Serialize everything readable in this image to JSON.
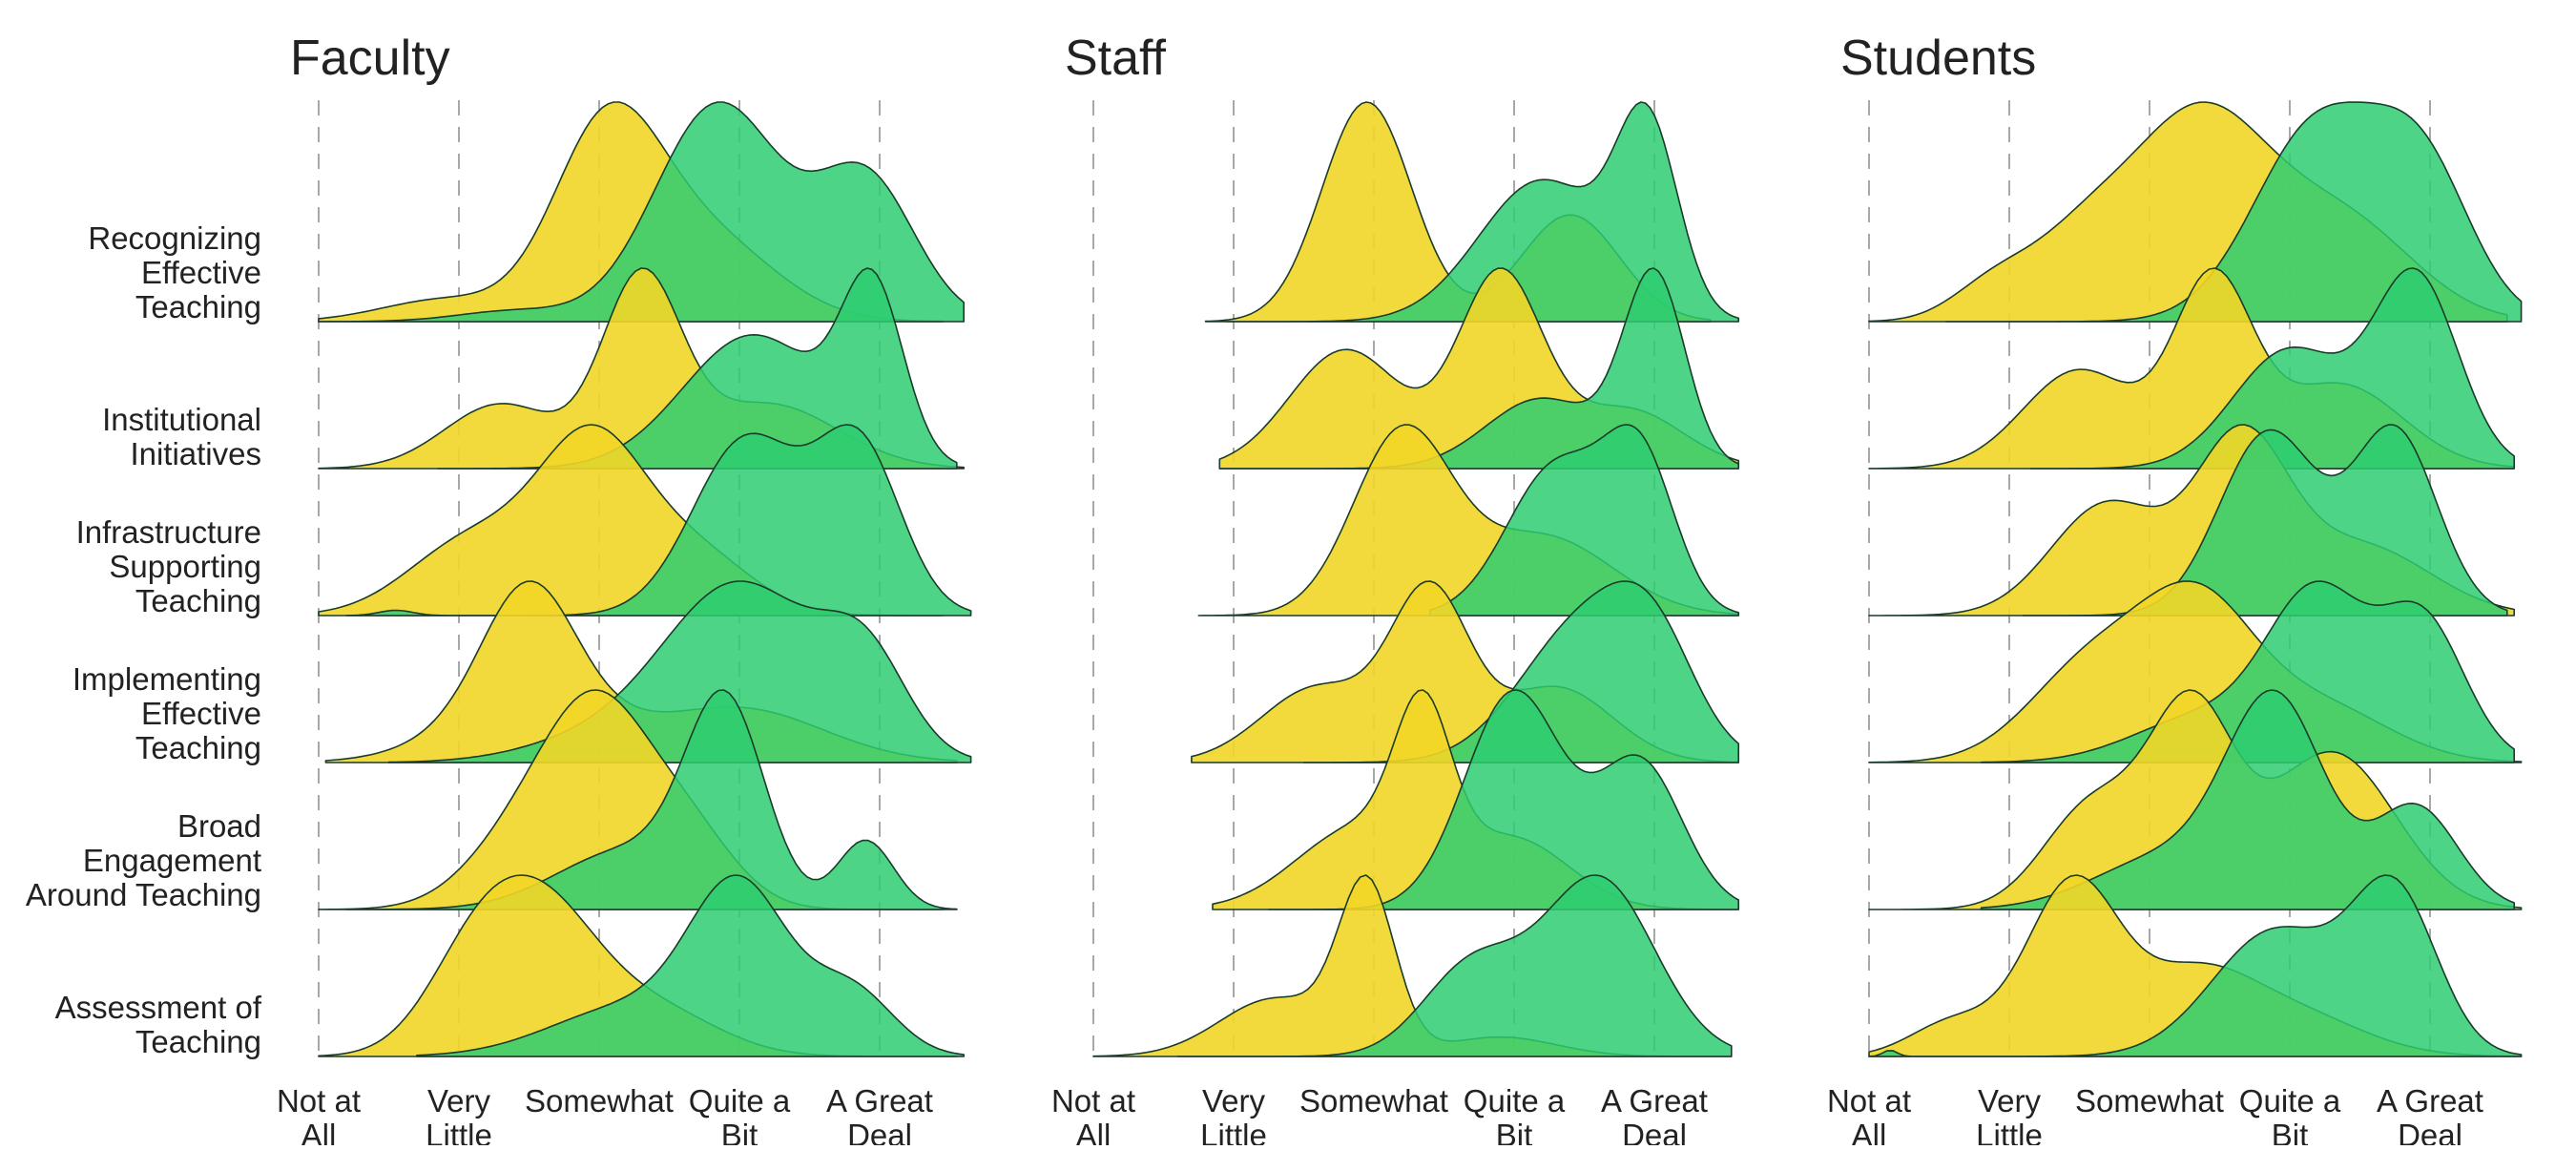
{
  "chart_data": {
    "type": "ridgeline",
    "x_scale": [
      "Not at All",
      "Very Little",
      "Somewhat",
      "Quite a Bit",
      "A Great Deal"
    ],
    "tick_labels": [
      [
        "Not at",
        "All"
      ],
      [
        "Very",
        "Little"
      ],
      [
        "Somewhat"
      ],
      [
        "Quite a",
        "Bit"
      ],
      [
        "A Great",
        "Deal"
      ]
    ],
    "categories": [
      [
        "Recognizing",
        "Effective",
        "Teaching"
      ],
      [
        "Institutional",
        "Initiatives"
      ],
      [
        "Infrastructure",
        "Supporting",
        "Teaching"
      ],
      [
        "Implementing",
        "Effective",
        "Teaching"
      ],
      [
        "Broad",
        "Engagement",
        "Around Teaching"
      ],
      [
        "Assessment of",
        "Teaching"
      ]
    ],
    "colors": {
      "current": "#f2d627",
      "ideal": "#2ecc71",
      "outline": "#1b3b2a",
      "grid": "#a8a8a8"
    },
    "panels": [
      {
        "title": "Faculty",
        "ridges": [
          {
            "yellow": {
              "range": [
                0.0,
                4.45
              ],
              "components": [
                [
                  0.9,
                  0.45,
                  0.12
                ],
                [
                  2.05,
                  0.38,
                  1.0
                ],
                [
                  2.75,
                  0.5,
                  0.45
                ]
              ]
            },
            "green": {
              "range": [
                0.0,
                4.6
              ],
              "components": [
                [
                  2.85,
                  0.45,
                  1.0
                ],
                [
                  3.9,
                  0.35,
                  0.65
                ],
                [
                  1.4,
                  0.4,
                  0.05
                ]
              ]
            }
          },
          {
            "yellow": {
              "range": [
                0.0,
                4.6
              ],
              "components": [
                [
                  1.3,
                  0.4,
                  0.35
                ],
                [
                  2.3,
                  0.28,
                  1.0
                ],
                [
                  3.2,
                  0.5,
                  0.35
                ]
              ]
            },
            "green": {
              "range": [
                0.85,
                4.55
              ],
              "components": [
                [
                  3.1,
                  0.5,
                  0.8
                ],
                [
                  3.95,
                  0.22,
                  1.0
                ]
              ]
            }
          },
          {
            "yellow": {
              "range": [
                0.0,
                4.45
              ],
              "components": [
                [
                  1.1,
                  0.45,
                  0.45
                ],
                [
                  1.95,
                  0.38,
                  1.0
                ],
                [
                  2.7,
                  0.4,
                  0.35
                ]
              ]
            },
            "green": {
              "range": [
                0.2,
                4.65
              ],
              "components": [
                [
                  3.05,
                  0.38,
                  1.0
                ],
                [
                  3.85,
                  0.3,
                  0.95
                ],
                [
                  0.55,
                  0.12,
                  0.03
                ]
              ]
            }
          },
          {
            "yellow": {
              "range": [
                0.05,
                4.55
              ],
              "components": [
                [
                  1.5,
                  0.32,
                  0.65
                ],
                [
                  1.5,
                  0.55,
                  0.35
                ],
                [
                  3.0,
                  0.6,
                  0.3
                ]
              ]
            },
            "green": {
              "range": [
                0.5,
                4.65
              ],
              "components": [
                [
                  3.0,
                  0.55,
                  1.0
                ],
                [
                  3.9,
                  0.3,
                  0.5
                ],
                [
                  1.9,
                  0.5,
                  0.1
                ]
              ]
            }
          },
          {
            "yellow": {
              "range": [
                0.0,
                4.45
              ],
              "components": [
                [
                  1.5,
                  0.4,
                  0.5
                ],
                [
                  2.0,
                  0.35,
                  1.0
                ],
                [
                  2.6,
                  0.35,
                  0.5
                ]
              ]
            },
            "green": {
              "range": [
                0.2,
                4.55
              ],
              "components": [
                [
                  2.9,
                  0.28,
                  1.0
                ],
                [
                  3.9,
                  0.2,
                  0.35
                ],
                [
                  2.2,
                  0.5,
                  0.3
                ]
              ]
            }
          },
          {
            "yellow": {
              "range": [
                0.0,
                4.55
              ],
              "components": [
                [
                  1.1,
                  0.35,
                  0.55
                ],
                [
                  1.6,
                  0.4,
                  0.9
                ],
                [
                  2.4,
                  0.45,
                  0.3
                ]
              ]
            },
            "green": {
              "range": [
                0.7,
                4.6
              ],
              "components": [
                [
                  3.0,
                  0.35,
                  1.0
                ],
                [
                  3.8,
                  0.3,
                  0.4
                ],
                [
                  2.2,
                  0.55,
                  0.3
                ]
              ]
            }
          }
        ]
      },
      {
        "title": "Staff",
        "ridges": [
          {
            "yellow": {
              "range": [
                0.8,
                4.4
              ],
              "components": [
                [
                  1.95,
                  0.32,
                  0.72
                ],
                [
                  3.4,
                  0.35,
                  0.35
                ]
              ]
            },
            "green": {
              "range": [
                0.95,
                4.6
              ],
              "components": [
                [
                  3.2,
                  0.45,
                  0.7
                ],
                [
                  3.95,
                  0.22,
                  0.9
                ]
              ]
            }
          },
          {
            "yellow": {
              "range": [
                0.9,
                4.6
              ],
              "components": [
                [
                  1.8,
                  0.4,
                  0.4
                ],
                [
                  2.9,
                  0.3,
                  0.65
                ],
                [
                  3.8,
                  0.4,
                  0.2
                ]
              ]
            },
            "green": {
              "range": [
                0.9,
                4.6
              ],
              "components": [
                [
                  3.2,
                  0.4,
                  0.35
                ],
                [
                  4.0,
                  0.22,
                  0.95
                ]
              ]
            }
          },
          {
            "yellow": {
              "range": [
                0.75,
                4.6
              ],
              "components": [
                [
                  2.2,
                  0.35,
                  0.68
                ],
                [
                  3.2,
                  0.5,
                  0.3
                ]
              ]
            },
            "green": {
              "range": [
                2.4,
                4.6
              ],
              "components": [
                [
                  3.3,
                  0.35,
                  0.6
                ],
                [
                  3.9,
                  0.25,
                  0.6
                ]
              ]
            }
          },
          {
            "yellow": {
              "range": [
                0.7,
                4.6
              ],
              "components": [
                [
                  1.6,
                  0.4,
                  0.25
                ],
                [
                  2.4,
                  0.28,
                  0.55
                ],
                [
                  3.3,
                  0.4,
                  0.25
                ]
              ]
            },
            "green": {
              "range": [
                1.5,
                4.6
              ],
              "components": [
                [
                  3.5,
                  0.45,
                  0.55
                ],
                [
                  4.0,
                  0.3,
                  0.35
                ]
              ]
            }
          },
          {
            "yellow": {
              "range": [
                0.85,
                4.6
              ],
              "components": [
                [
                  1.9,
                  0.45,
                  0.3
                ],
                [
                  2.35,
                  0.2,
                  0.55
                ],
                [
                  3.0,
                  0.4,
                  0.25
                ]
              ]
            },
            "green": {
              "range": [
                1.25,
                4.6
              ],
              "components": [
                [
                  3.0,
                  0.35,
                  0.6
                ],
                [
                  3.9,
                  0.3,
                  0.4
                ]
              ]
            }
          },
          {
            "yellow": {
              "range": [
                0.0,
                4.55
              ],
              "components": [
                [
                  1.3,
                  0.4,
                  0.3
                ],
                [
                  1.95,
                  0.2,
                  0.85
                ],
                [
                  2.9,
                  0.4,
                  0.1
                ]
              ]
            },
            "green": {
              "range": [
                0.6,
                4.55
              ],
              "components": [
                [
                  2.7,
                  0.35,
                  0.4
                ],
                [
                  3.6,
                  0.4,
                  0.8
                ]
              ]
            }
          }
        ]
      },
      {
        "title": "Students",
        "ridges": [
          {
            "yellow": {
              "range": [
                0.0,
                4.55
              ],
              "components": [
                [
                  0.9,
                  0.3,
                  0.12
                ],
                [
                  1.5,
                  0.35,
                  0.2
                ],
                [
                  2.35,
                  0.5,
                  0.65
                ],
                [
                  3.4,
                  0.5,
                  0.3
                ]
              ]
            },
            "green": {
              "range": [
                0.55,
                4.65
              ],
              "components": [
                [
                  3.2,
                  0.45,
                  0.9
                ],
                [
                  3.95,
                  0.35,
                  0.65
                ]
              ]
            }
          },
          {
            "yellow": {
              "range": [
                0.0,
                4.6
              ],
              "components": [
                [
                  1.5,
                  0.4,
                  0.35
                ],
                [
                  2.45,
                  0.28,
                  0.65
                ],
                [
                  3.35,
                  0.45,
                  0.3
                ]
              ]
            },
            "green": {
              "range": [
                1.15,
                4.6
              ],
              "components": [
                [
                  3.0,
                  0.4,
                  0.5
                ],
                [
                  3.9,
                  0.3,
                  0.8
                ]
              ]
            }
          },
          {
            "yellow": {
              "range": [
                0.0,
                4.6
              ],
              "components": [
                [
                  1.7,
                  0.4,
                  0.4
                ],
                [
                  2.65,
                  0.33,
                  0.6
                ],
                [
                  3.5,
                  0.5,
                  0.25
                ]
              ]
            },
            "green": {
              "range": [
                1.1,
                4.55
              ],
              "components": [
                [
                  2.85,
                  0.35,
                  0.7
                ],
                [
                  3.75,
                  0.3,
                  0.7
                ]
              ]
            }
          },
          {
            "yellow": {
              "range": [
                0.0,
                4.65
              ],
              "components": [
                [
                  1.6,
                  0.45,
                  0.35
                ],
                [
                  2.35,
                  0.4,
                  0.5
                ],
                [
                  3.2,
                  0.5,
                  0.2
                ]
              ]
            },
            "green": {
              "range": [
                0.8,
                4.6
              ],
              "components": [
                [
                  3.2,
                  0.35,
                  0.7
                ],
                [
                  3.95,
                  0.3,
                  0.6
                ],
                [
                  2.4,
                  0.5,
                  0.2
                ]
              ]
            }
          },
          {
            "yellow": {
              "range": [
                0.0,
                4.65
              ],
              "components": [
                [
                  1.6,
                  0.35,
                  0.3
                ],
                [
                  2.3,
                  0.3,
                  0.55
                ],
                [
                  3.3,
                  0.45,
                  0.45
                ]
              ]
            },
            "green": {
              "range": [
                0.8,
                4.6
              ],
              "components": [
                [
                  2.9,
                  0.35,
                  0.8
                ],
                [
                  3.9,
                  0.3,
                  0.4
                ],
                [
                  2.1,
                  0.5,
                  0.2
                ]
              ]
            }
          },
          {
            "yellow": {
              "range": [
                0.0,
                4.65
              ],
              "components": [
                [
                  0.6,
                  0.3,
                  0.12
                ],
                [
                  1.45,
                  0.33,
                  0.6
                ],
                [
                  2.3,
                  0.4,
                  0.25
                ],
                [
                  3.0,
                  0.5,
                  0.15
                ]
              ]
            },
            "green": {
              "range": [
                0.0,
                4.65
              ],
              "components": [
                [
                  2.9,
                  0.45,
                  0.6
                ],
                [
                  3.75,
                  0.3,
                  0.75
                ],
                [
                  0.15,
                  0.05,
                  0.03
                ]
              ]
            }
          }
        ]
      }
    ]
  }
}
